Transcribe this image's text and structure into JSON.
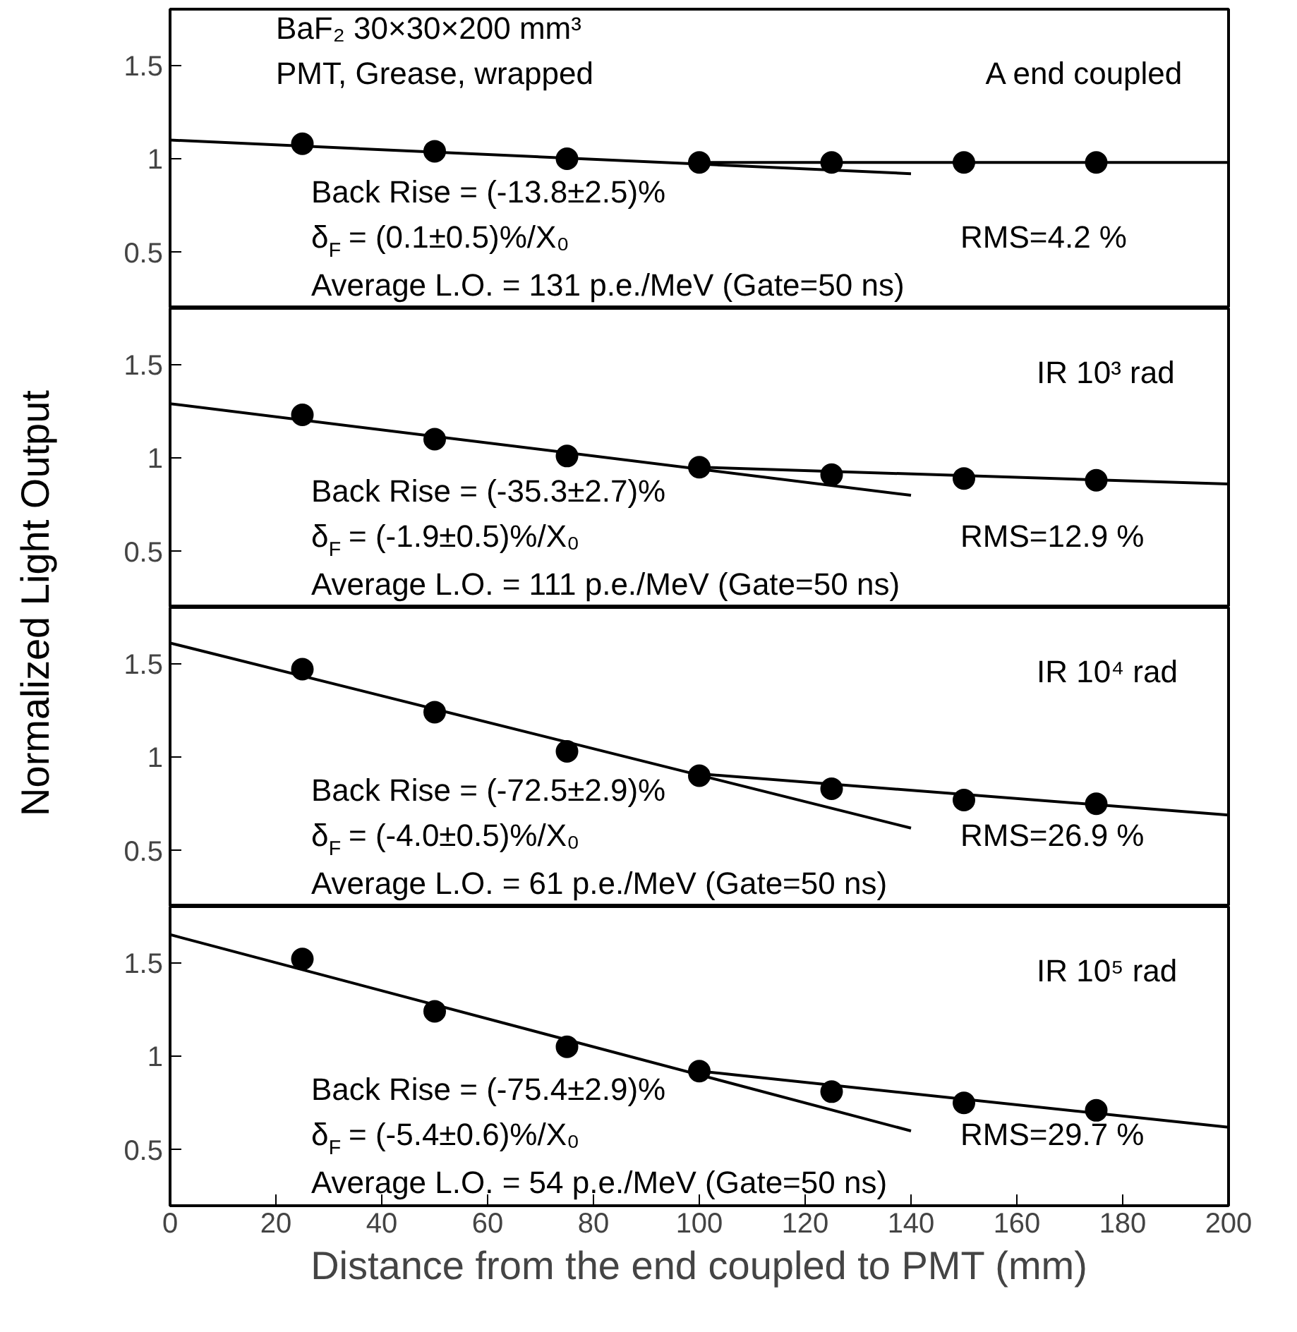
{
  "chart_data": [
    {
      "type": "scatter",
      "title": "BaF₂ 30×30×200 mm³",
      "subtitle": "PMT, Grease, wrapped",
      "ylabel": "Normalized Light Output",
      "x": [
        25,
        50,
        75,
        100,
        125,
        150,
        175
      ],
      "xlim": [
        0,
        200
      ],
      "xticks": [
        0,
        20,
        40,
        60,
        80,
        100,
        120,
        140,
        160,
        180,
        200
      ],
      "ylim": [
        0.2,
        1.8
      ],
      "yticks": [
        0.5,
        1,
        1.5
      ],
      "tick_labels": "y",
      "series": [
        {
          "color": "#000000",
          "marker": "circle",
          "values": [
            1.08,
            1.04,
            1.0,
            0.98,
            0.98,
            0.98,
            0.98
          ]
        },
        {
          "type": "line",
          "color": "#000000",
          "x": [
            0,
            140
          ],
          "values": [
            1.1,
            0.92
          ]
        },
        {
          "type": "line",
          "color": "#000000",
          "x": [
            100,
            200
          ],
          "values": [
            0.98,
            0.98
          ]
        }
      ],
      "annotations": [
        "A end coupled",
        "Back Rise = (-13.8±2.5)%",
        "δ$_{F}$ = (0.1±0.5)%/X₀",
        "Average L.O. = 131 p.e./MeV  (Gate=50 ns)",
        "RMS=4.2 %"
      ]
    },
    {
      "type": "scatter",
      "x": [
        25,
        50,
        75,
        100,
        125,
        150,
        175
      ],
      "xlim": [
        0,
        200
      ],
      "xticks": [
        0,
        20,
        40,
        60,
        80,
        100,
        120,
        140,
        160,
        180,
        200
      ],
      "ylim": [
        0.2,
        1.8
      ],
      "yticks": [
        0.5,
        1,
        1.5
      ],
      "tick_labels": "y",
      "series": [
        {
          "color": "#000000",
          "marker": "circle",
          "values": [
            1.23,
            1.1,
            1.01,
            0.95,
            0.91,
            0.89,
            0.88
          ]
        },
        {
          "type": "line",
          "color": "#000000",
          "x": [
            0,
            140
          ],
          "values": [
            1.29,
            0.8
          ]
        },
        {
          "type": "line",
          "color": "#000000",
          "x": [
            100,
            200
          ],
          "values": [
            0.95,
            0.86
          ]
        }
      ],
      "annotations": [
        "IR 10³ rad",
        "Back Rise = (-35.3±2.7)%",
        "δ$_{F}$ = (-1.9±0.5)%/X₀",
        "Average L.O. = 111 p.e./MeV  (Gate=50 ns)",
        "RMS=12.9 %"
      ]
    },
    {
      "type": "scatter",
      "x": [
        25,
        50,
        75,
        100,
        125,
        150,
        175
      ],
      "xlim": [
        0,
        200
      ],
      "xticks": [
        0,
        20,
        40,
        60,
        80,
        100,
        120,
        140,
        160,
        180,
        200
      ],
      "ylim": [
        0.2,
        1.8
      ],
      "yticks": [
        0.5,
        1,
        1.5
      ],
      "tick_labels": "y",
      "series": [
        {
          "color": "#000000",
          "marker": "circle",
          "values": [
            1.47,
            1.24,
            1.03,
            0.9,
            0.83,
            0.77,
            0.75
          ]
        },
        {
          "type": "line",
          "color": "#000000",
          "x": [
            0,
            140
          ],
          "values": [
            1.61,
            0.62
          ]
        },
        {
          "type": "line",
          "color": "#000000",
          "x": [
            100,
            200
          ],
          "values": [
            0.91,
            0.69
          ]
        }
      ],
      "annotations": [
        "IR 10⁴ rad",
        "Back Rise = (-72.5±2.9)%",
        "δ$_{F}$ = (-4.0±0.5)%/X₀",
        "Average L.O. = 61 p.e./MeV  (Gate=50 ns)",
        "RMS=26.9 %"
      ]
    },
    {
      "type": "scatter",
      "xlabel": "Distance from the end coupled to PMT (mm)",
      "x": [
        25,
        50,
        75,
        100,
        125,
        150,
        175
      ],
      "xlim": [
        0,
        200
      ],
      "xticks": [
        0,
        20,
        40,
        60,
        80,
        100,
        120,
        140,
        160,
        180,
        200
      ],
      "ylim": [
        0.2,
        1.8
      ],
      "yticks": [
        0.5,
        1,
        1.5
      ],
      "series": [
        {
          "color": "#000000",
          "marker": "circle",
          "values": [
            1.52,
            1.24,
            1.05,
            0.92,
            0.81,
            0.75,
            0.71
          ]
        },
        {
          "type": "line",
          "color": "#000000",
          "x": [
            0,
            140
          ],
          "values": [
            1.65,
            0.6
          ]
        },
        {
          "type": "line",
          "color": "#000000",
          "x": [
            100,
            200
          ],
          "values": [
            0.92,
            0.62
          ]
        }
      ],
      "annotations": [
        "IR 10⁵ rad",
        "Back Rise = (-75.4±2.9)%",
        "δ$_{F}$ = (-5.4±0.6)%/X₀",
        "Average L.O. = 54 p.e./MeV  (Gate=50 ns)",
        "RMS=29.7 %"
      ]
    }
  ]
}
